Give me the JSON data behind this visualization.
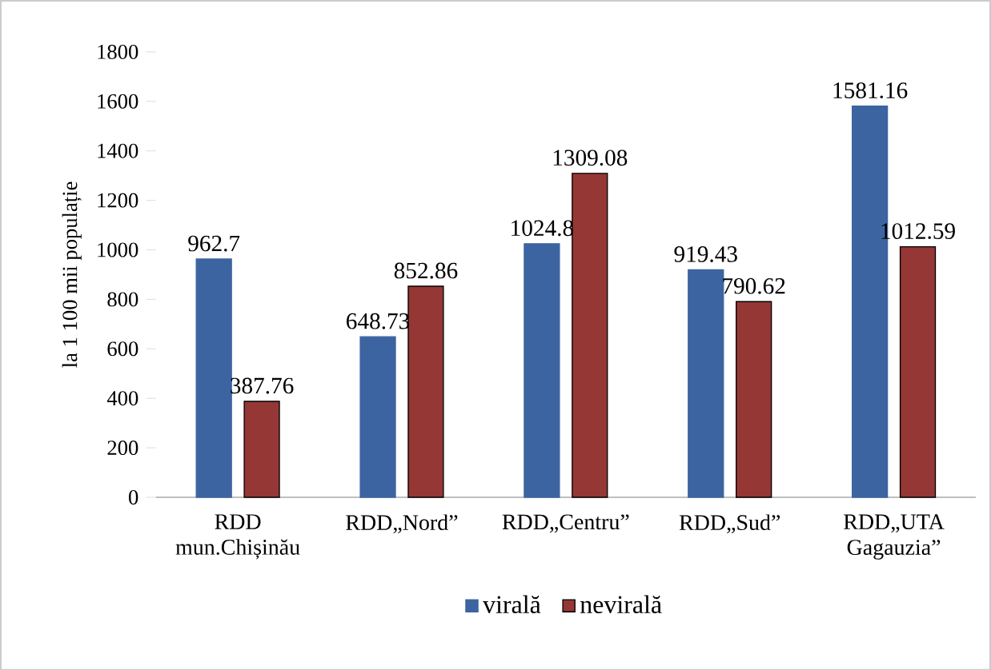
{
  "chart_data": {
    "type": "bar",
    "ylabel": "la 1 100 mii populație",
    "categories": [
      "RDD mun.Chișinău",
      "RDD„Nord”",
      "RDD„Centru”",
      "RDD„Sud”",
      "RDD„UTA Gagauzia”"
    ],
    "series": [
      {
        "name": "virală",
        "color": "#3c64a0",
        "values": [
          962.7,
          648.73,
          1024.8,
          919.43,
          1581.16
        ]
      },
      {
        "name": "nevirală",
        "color": "#953735",
        "values": [
          387.76,
          852.86,
          1309.08,
          790.62,
          1012.59
        ]
      }
    ],
    "ylim": [
      0,
      1800
    ],
    "yticks": [
      0,
      200,
      400,
      600,
      800,
      1000,
      1200,
      1400,
      1600,
      1800
    ],
    "data_labels": true,
    "legend": "bottom",
    "grid": false
  }
}
